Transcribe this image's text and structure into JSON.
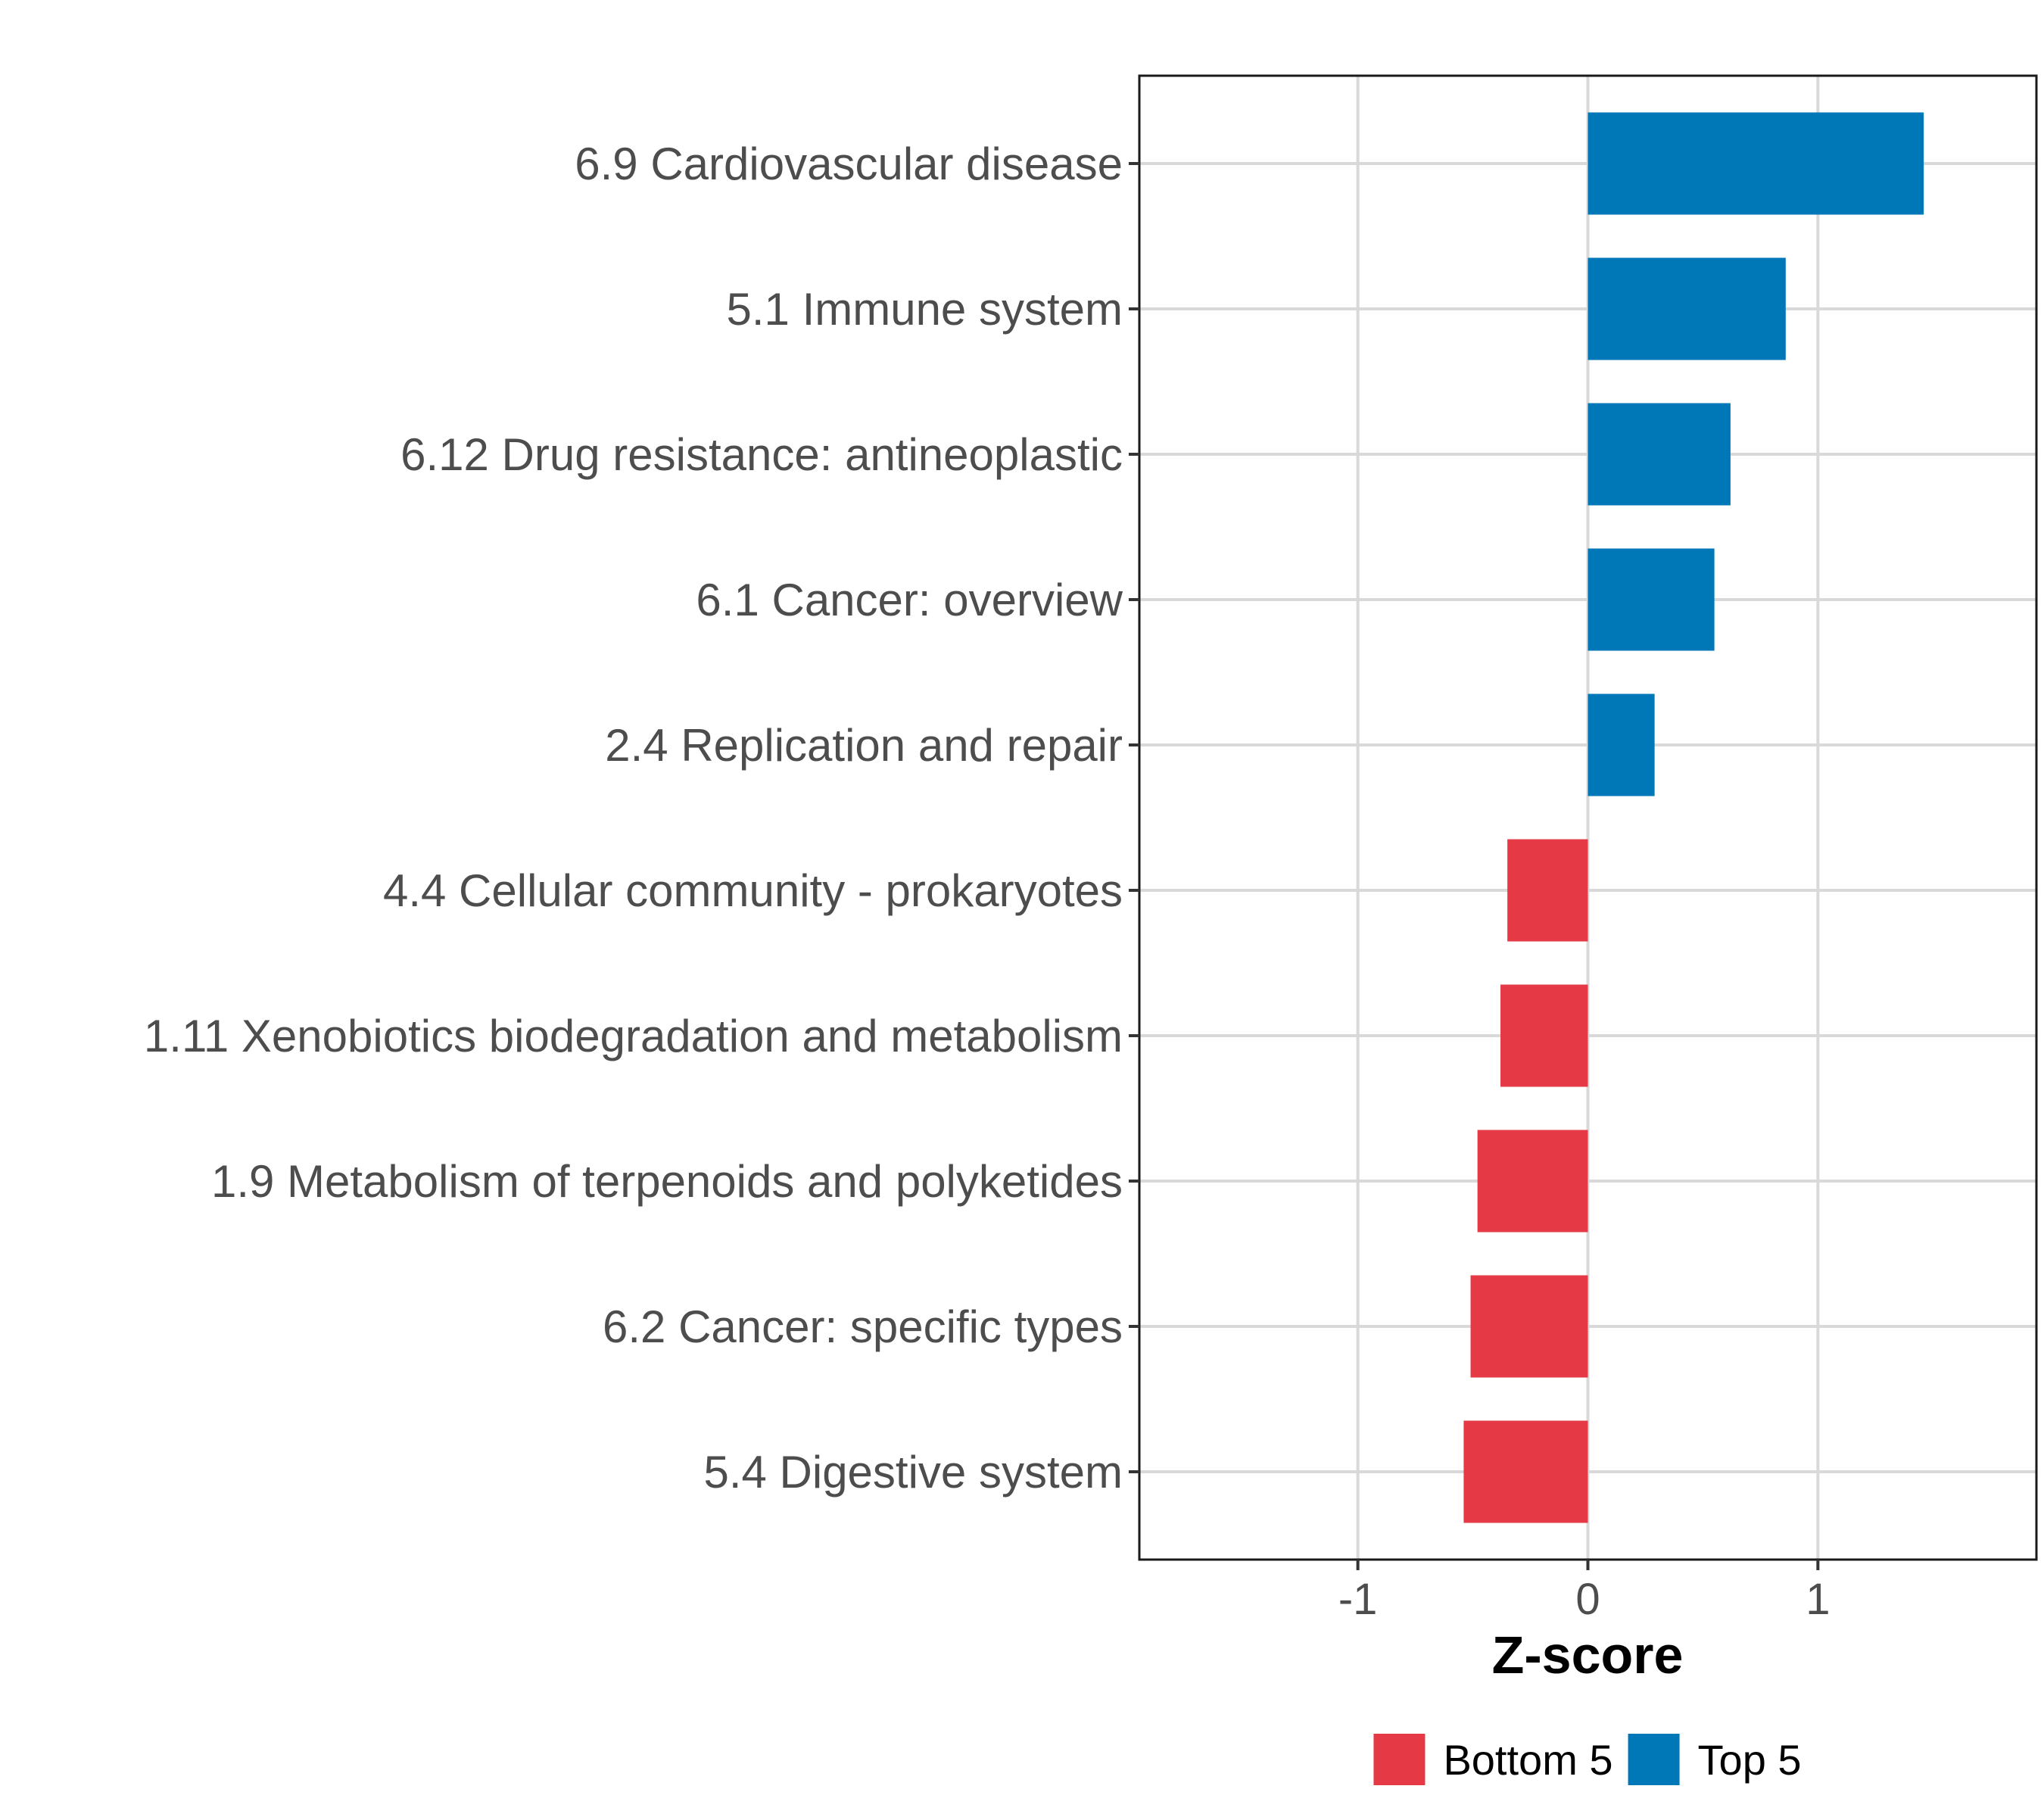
{
  "chart_data": {
    "type": "bar",
    "orientation": "horizontal",
    "categories": [
      "6.9 Cardiovascular disease",
      "5.1 Immune system",
      "6.12 Drug resistance: antineoplastic",
      "6.1 Cancer: overview",
      "2.4 Replication and repair",
      "4.4 Cellular community - prokaryotes",
      "1.11 Xenobiotics biodegradation and metabolism",
      "1.9 Metabolism of terpenoids and polyketides",
      "6.2 Cancer: specific types",
      "5.4 Digestive system"
    ],
    "values": [
      1.46,
      0.86,
      0.62,
      0.55,
      0.29,
      -0.35,
      -0.38,
      -0.48,
      -0.51,
      -0.54
    ],
    "groups": [
      "Top 5",
      "Top 5",
      "Top 5",
      "Top 5",
      "Top 5",
      "Bottom 5",
      "Bottom 5",
      "Bottom 5",
      "Bottom 5",
      "Bottom 5"
    ],
    "xlabel": "Z-score",
    "ylabel": "",
    "xlim": [
      -1.95,
      1.95
    ],
    "xticks": [
      -1,
      0,
      1
    ],
    "xtick_labels": [
      "-1",
      "0",
      "1"
    ],
    "grid": true,
    "legend": {
      "position": "bottom",
      "entries": [
        {
          "label": "Bottom 5",
          "color": "#e63946"
        },
        {
          "label": "Top 5",
          "color": "#0077b6"
        }
      ]
    }
  }
}
